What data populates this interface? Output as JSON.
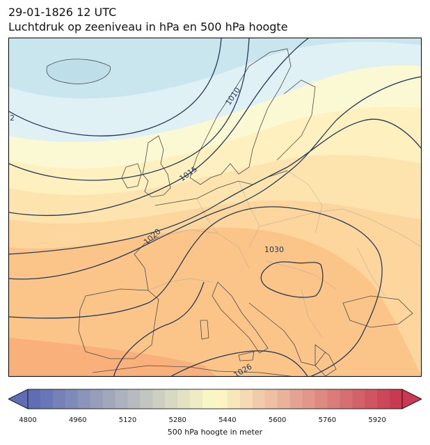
{
  "header": {
    "datetime": "29-01-1826 12 UTC",
    "subtitle": "Luchtdruk op zeeniveau in hPa en 500 hPa hoogte"
  },
  "map": {
    "region": "Europe",
    "isobar_color": "#243a55",
    "coastline_color": "#4a4a4a",
    "isobar_labels": [
      "1010",
      "1015",
      "1020",
      "1030",
      "1026"
    ],
    "edge_label": "2"
  },
  "colorbar": {
    "label": "500 hPa hoogte in meter",
    "min": 4800,
    "max": 5960,
    "step": 40,
    "tick_labels": [
      "4800",
      "4960",
      "5120",
      "5280",
      "5440",
      "5600",
      "5760",
      "5920"
    ],
    "colors": {
      "low": "#5f6db5",
      "mid": "#fefbc7",
      "high": "#c73a52"
    }
  }
}
